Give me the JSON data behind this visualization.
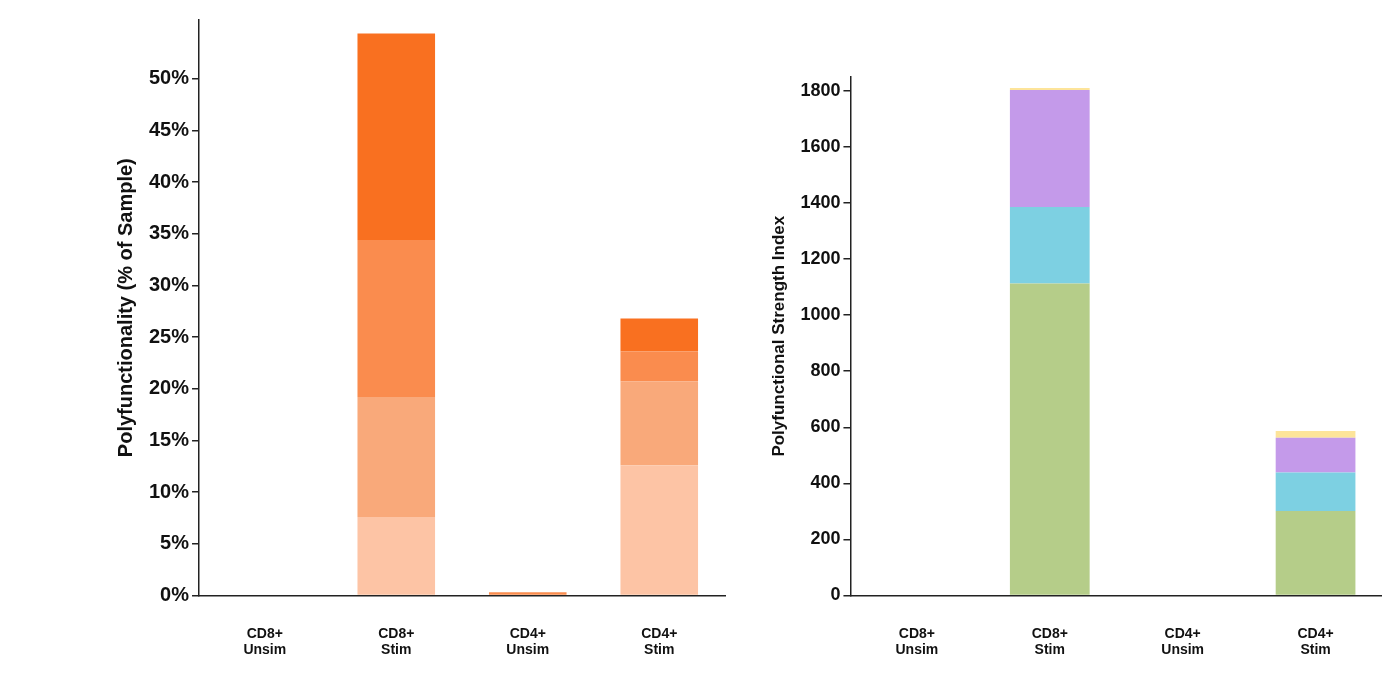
{
  "chart_data": [
    {
      "type": "bar",
      "ylabel": "Polyfunctionality (% of Sample)",
      "categories": [
        "CD8+\nUnsim",
        "CD8+\nStim",
        "CD4+\nUnsim",
        "CD4+\nStim"
      ],
      "stacked": true,
      "grid": false,
      "legend": false,
      "ylim": [
        0,
        55.7
      ],
      "yticks": [
        {
          "value": 0,
          "label": "0%"
        },
        {
          "value": 5,
          "label": "5%"
        },
        {
          "value": 10,
          "label": "10%"
        },
        {
          "value": 15,
          "label": "15%"
        },
        {
          "value": 20,
          "label": "20%"
        },
        {
          "value": 25,
          "label": "25%"
        },
        {
          "value": 30,
          "label": "30%"
        },
        {
          "value": 35,
          "label": "35%"
        },
        {
          "value": 40,
          "label": "40%"
        },
        {
          "value": 45,
          "label": "45%"
        },
        {
          "value": 50,
          "label": "50%"
        }
      ],
      "series": [
        {
          "color": "#fdc4a5",
          "values": [
            0,
            7.6,
            0,
            12.6
          ]
        },
        {
          "color": "#f9a97a",
          "values": [
            0,
            11.6,
            0,
            8.1
          ]
        },
        {
          "color": "#fa8c4e",
          "values": [
            0,
            15.2,
            0.3,
            2.9
          ]
        },
        {
          "color": "#f97020",
          "values": [
            0,
            20.0,
            0,
            3.2
          ]
        }
      ]
    },
    {
      "type": "bar",
      "ylabel": "Polyfunctional Strength Index",
      "categories": [
        "CD8+\nUnsim",
        "CD8+\nStim",
        "CD4+\nUnsim",
        "CD4+\nStim"
      ],
      "stacked": true,
      "grid": false,
      "legend": false,
      "ylim": [
        0,
        1850
      ],
      "yticks": [
        0,
        200,
        400,
        600,
        800,
        1000,
        1200,
        1400,
        1600,
        1800
      ],
      "series": [
        {
          "color": "#b5cd89",
          "values": [
            0,
            1113,
            0,
            301
          ]
        },
        {
          "color": "#7dd0e2",
          "values": [
            0,
            273,
            0,
            138
          ]
        },
        {
          "color": "#c49aea",
          "values": [
            0,
            418,
            0,
            124
          ]
        },
        {
          "color": "#fde49a",
          "values": [
            0,
            7,
            0,
            24
          ]
        }
      ]
    }
  ]
}
